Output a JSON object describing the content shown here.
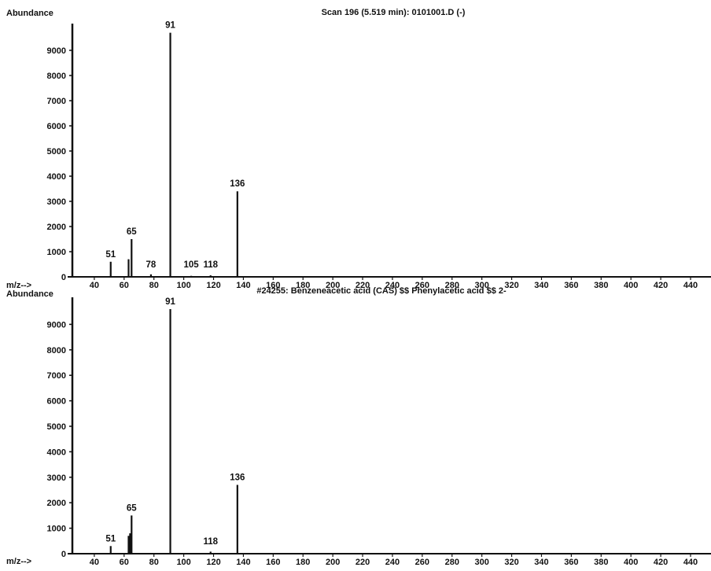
{
  "chart_data": [
    {
      "type": "bar",
      "title": "Scan 196 (5.519 min): 0101001.D (-)",
      "ylabel": "Abundance",
      "xlabel": "m/z-->",
      "xlim": [
        20,
        455
      ],
      "ylim": [
        0,
        10000
      ],
      "xticks": [
        40,
        60,
        80,
        100,
        120,
        140,
        160,
        180,
        200,
        220,
        240,
        260,
        280,
        300,
        320,
        340,
        360,
        380,
        400,
        420,
        440
      ],
      "yticks": [
        0,
        1000,
        2000,
        3000,
        4000,
        5000,
        6000,
        7000,
        8000,
        9000
      ],
      "peaks": [
        {
          "mz": 51,
          "abundance": 600
        },
        {
          "mz": 63,
          "abundance": 700
        },
        {
          "mz": 65,
          "abundance": 1500
        },
        {
          "mz": 78,
          "abundance": 100
        },
        {
          "mz": 91,
          "abundance": 9700
        },
        {
          "mz": 105,
          "abundance": 40
        },
        {
          "mz": 118,
          "abundance": 60
        },
        {
          "mz": 136,
          "abundance": 3400
        }
      ],
      "peak_labels": [
        {
          "mz": 51,
          "text": "51"
        },
        {
          "mz": 65,
          "text": "65"
        },
        {
          "mz": 78,
          "text": "78"
        },
        {
          "mz": 91,
          "text": "91"
        },
        {
          "mz": 105,
          "text": "105"
        },
        {
          "mz": 118,
          "text": "118"
        },
        {
          "mz": 136,
          "text": "136"
        }
      ]
    },
    {
      "type": "bar",
      "title": "#24255: Benzeneacetic acid (CAS) $$ Phenylacetic acid $$ 2-",
      "ylabel": "Abundance",
      "xlabel": "m/z-->",
      "xlim": [
        20,
        455
      ],
      "ylim": [
        0,
        10000
      ],
      "xticks": [
        40,
        60,
        80,
        100,
        120,
        140,
        160,
        180,
        200,
        220,
        240,
        260,
        280,
        300,
        320,
        340,
        360,
        380,
        400,
        420,
        440
      ],
      "yticks": [
        0,
        1000,
        2000,
        3000,
        4000,
        5000,
        6000,
        7000,
        8000,
        9000
      ],
      "peaks": [
        {
          "mz": 51,
          "abundance": 300
        },
        {
          "mz": 63,
          "abundance": 700
        },
        {
          "mz": 64,
          "abundance": 800
        },
        {
          "mz": 65,
          "abundance": 1500
        },
        {
          "mz": 91,
          "abundance": 9600
        },
        {
          "mz": 118,
          "abundance": 80
        },
        {
          "mz": 136,
          "abundance": 2700
        }
      ],
      "peak_labels": [
        {
          "mz": 51,
          "text": "51"
        },
        {
          "mz": 65,
          "text": "65"
        },
        {
          "mz": 91,
          "text": "91"
        },
        {
          "mz": 118,
          "text": "118"
        },
        {
          "mz": 136,
          "text": "136"
        }
      ]
    }
  ]
}
